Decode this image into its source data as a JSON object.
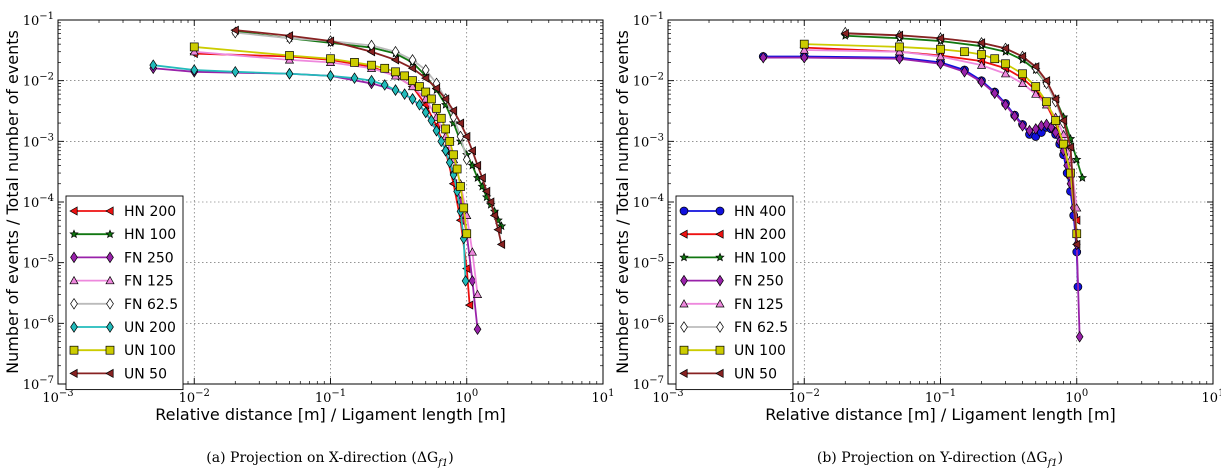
{
  "chart_data": [
    {
      "type": "line",
      "xscale": "log",
      "yscale": "log",
      "xlim": [
        0.001,
        10
      ],
      "ylim": [
        1e-07,
        0.1
      ],
      "xlabel": "Relative distance [m] / Ligament length [m]",
      "ylabel": "Number of events / Total number of events",
      "caption": "(a) Projection on X-direction (ΔG",
      "caption_sub": "f1",
      "caption_end": ")",
      "grid": true,
      "legend_position": "lower-left",
      "x_ticks": [
        {
          "base": "10",
          "exp": "−3"
        },
        {
          "base": "10",
          "exp": "−2"
        },
        {
          "base": "10",
          "exp": "−1"
        },
        {
          "base": "10",
          "exp": "0"
        },
        {
          "base": "10",
          "exp": "1"
        }
      ],
      "y_ticks": [
        {
          "base": "10",
          "exp": "−7"
        },
        {
          "base": "10",
          "exp": "−6"
        },
        {
          "base": "10",
          "exp": "−5"
        },
        {
          "base": "10",
          "exp": "−4"
        },
        {
          "base": "10",
          "exp": "−3"
        },
        {
          "base": "10",
          "exp": "−2"
        },
        {
          "base": "10",
          "exp": "−1"
        }
      ],
      "series": [
        {
          "name": "HN 200",
          "color": "#ee1111",
          "marker": "tri-left",
          "x": [
            0.01,
            0.05,
            0.1,
            0.2,
            0.3,
            0.4,
            0.5,
            0.6,
            0.7,
            0.8,
            0.9,
            1.0,
            1.05
          ],
          "y": [
            0.028,
            0.025,
            0.022,
            0.017,
            0.012,
            0.008,
            0.004,
            0.0018,
            0.0007,
            0.0002,
            5e-05,
            8e-06,
            2e-06
          ]
        },
        {
          "name": "HN 100",
          "color": "#117711",
          "marker": "star",
          "x": [
            0.02,
            0.05,
            0.1,
            0.2,
            0.3,
            0.4,
            0.5,
            0.6,
            0.7,
            0.8,
            0.9,
            1.0,
            1.1,
            1.2,
            1.3,
            1.4,
            1.5,
            1.6,
            1.7,
            1.8
          ],
          "y": [
            0.065,
            0.05,
            0.042,
            0.035,
            0.028,
            0.02,
            0.012,
            0.007,
            0.004,
            0.002,
            0.001,
            0.0006,
            0.0004,
            0.00025,
            0.00018,
            0.00012,
            9e-05,
            7e-05,
            5e-05,
            4e-05
          ]
        },
        {
          "name": "FN 250",
          "color": "#9922aa",
          "marker": "diamond",
          "x": [
            0.005,
            0.01,
            0.05,
            0.1,
            0.2,
            0.3,
            0.4,
            0.5,
            0.6,
            0.7,
            0.8,
            0.9,
            1.0,
            1.1,
            1.2
          ],
          "y": [
            0.016,
            0.014,
            0.013,
            0.012,
            0.009,
            0.007,
            0.005,
            0.003,
            0.0015,
            0.0007,
            0.0003,
            0.0001,
            3e-05,
            5e-06,
            8e-07
          ]
        },
        {
          "name": "FN 125",
          "color": "#ee88dd",
          "marker": "triangle",
          "x": [
            0.01,
            0.05,
            0.1,
            0.2,
            0.3,
            0.4,
            0.5,
            0.6,
            0.7,
            0.8,
            0.9,
            1.0,
            1.1,
            1.2
          ],
          "y": [
            0.03,
            0.022,
            0.02,
            0.016,
            0.012,
            0.008,
            0.005,
            0.0025,
            0.0012,
            0.0005,
            0.0002,
            6e-05,
            1.5e-05,
            3e-06
          ]
        },
        {
          "name": "FN 62.5",
          "color": "#bbbbbb",
          "marker": "diamond-open",
          "x": [
            0.02,
            0.05,
            0.1,
            0.2,
            0.3,
            0.4,
            0.5,
            0.6,
            0.7,
            0.8,
            0.9,
            1.0
          ],
          "y": [
            0.062,
            0.05,
            0.045,
            0.038,
            0.03,
            0.022,
            0.015,
            0.009,
            0.005,
            0.0025,
            0.0012,
            0.0005
          ]
        },
        {
          "name": "UN 200",
          "color": "#22bbbb",
          "marker": "diamond",
          "x": [
            0.005,
            0.01,
            0.02,
            0.05,
            0.1,
            0.15,
            0.2,
            0.25,
            0.3,
            0.35,
            0.4,
            0.45,
            0.5,
            0.55,
            0.6,
            0.65,
            0.7,
            0.75,
            0.8,
            0.85,
            0.9,
            0.95,
            0.98
          ],
          "y": [
            0.018,
            0.015,
            0.014,
            0.013,
            0.012,
            0.011,
            0.01,
            0.0085,
            0.007,
            0.006,
            0.005,
            0.004,
            0.003,
            0.0022,
            0.0015,
            0.001,
            0.0007,
            0.00045,
            0.00028,
            0.00015,
            7e-05,
            2.5e-05,
            5e-06
          ]
        },
        {
          "name": "UN 100",
          "color": "#cccc00",
          "marker": "square",
          "x": [
            0.01,
            0.05,
            0.1,
            0.15,
            0.2,
            0.25,
            0.3,
            0.35,
            0.4,
            0.45,
            0.5,
            0.55,
            0.6,
            0.65,
            0.7,
            0.75,
            0.8,
            0.85,
            0.9,
            0.95,
            1.0
          ],
          "y": [
            0.036,
            0.026,
            0.023,
            0.02,
            0.018,
            0.016,
            0.014,
            0.012,
            0.01,
            0.008,
            0.0065,
            0.005,
            0.0035,
            0.0024,
            0.0016,
            0.001,
            0.0006,
            0.00035,
            0.00018,
            8e-05,
            3e-05
          ]
        },
        {
          "name": "UN 50",
          "color": "#882222",
          "marker": "tri-left",
          "x": [
            0.02,
            0.05,
            0.1,
            0.2,
            0.3,
            0.4,
            0.5,
            0.6,
            0.7,
            0.8,
            0.9,
            1.0,
            1.1,
            1.2,
            1.3,
            1.4,
            1.5,
            1.6,
            1.7,
            1.8
          ],
          "y": [
            0.068,
            0.055,
            0.045,
            0.03,
            0.022,
            0.016,
            0.011,
            0.0075,
            0.005,
            0.0032,
            0.002,
            0.0012,
            0.0007,
            0.0004,
            0.00025,
            0.00015,
            0.0001,
            6e-05,
            3.5e-05,
            2e-05
          ]
        }
      ]
    },
    {
      "type": "line",
      "xscale": "log",
      "yscale": "log",
      "xlim": [
        0.001,
        10
      ],
      "ylim": [
        1e-07,
        0.1
      ],
      "xlabel": "Relative distance [m] / Ligament length [m]",
      "ylabel": "Number of events / Total number of events",
      "caption": "(b) Projection on Y-direction (ΔG",
      "caption_sub": "f1",
      "caption_end": ")",
      "grid": true,
      "legend_position": "lower-left",
      "x_ticks": [
        {
          "base": "10",
          "exp": "−3"
        },
        {
          "base": "10",
          "exp": "−2"
        },
        {
          "base": "10",
          "exp": "−1"
        },
        {
          "base": "10",
          "exp": "0"
        },
        {
          "base": "10",
          "exp": "1"
        }
      ],
      "y_ticks": [
        {
          "base": "10",
          "exp": "−7"
        },
        {
          "base": "10",
          "exp": "−6"
        },
        {
          "base": "10",
          "exp": "−5"
        },
        {
          "base": "10",
          "exp": "−4"
        },
        {
          "base": "10",
          "exp": "−3"
        },
        {
          "base": "10",
          "exp": "−2"
        },
        {
          "base": "10",
          "exp": "−1"
        }
      ],
      "series": [
        {
          "name": "HN 400",
          "color": "#1111dd",
          "marker": "circle",
          "x": [
            0.005,
            0.01,
            0.05,
            0.1,
            0.15,
            0.2,
            0.25,
            0.3,
            0.35,
            0.4,
            0.45,
            0.5,
            0.55,
            0.6,
            0.65,
            0.7,
            0.75,
            0.8,
            0.85,
            0.9,
            0.95,
            1.0,
            1.02
          ],
          "y": [
            0.025,
            0.025,
            0.024,
            0.02,
            0.015,
            0.01,
            0.0065,
            0.0042,
            0.0027,
            0.0019,
            0.0013,
            0.0012,
            0.0014,
            0.0017,
            0.0016,
            0.0013,
            0.0009,
            0.0006,
            0.0003,
            0.00015,
            6e-05,
            1.5e-05,
            4e-06
          ]
        },
        {
          "name": "HN 200",
          "color": "#ee1111",
          "marker": "tri-left",
          "x": [
            0.01,
            0.05,
            0.1,
            0.2,
            0.3,
            0.4,
            0.5,
            0.6,
            0.7,
            0.8,
            0.9,
            1.0
          ],
          "y": [
            0.035,
            0.03,
            0.026,
            0.021,
            0.016,
            0.011,
            0.007,
            0.004,
            0.002,
            0.0008,
            0.00025,
            5e-05
          ]
        },
        {
          "name": "HN 100",
          "color": "#117711",
          "marker": "star",
          "x": [
            0.02,
            0.05,
            0.1,
            0.2,
            0.3,
            0.4,
            0.5,
            0.6,
            0.7,
            0.8,
            0.9,
            1.0,
            1.1
          ],
          "y": [
            0.055,
            0.05,
            0.045,
            0.037,
            0.03,
            0.022,
            0.015,
            0.009,
            0.005,
            0.0025,
            0.0011,
            0.0005,
            0.00025
          ]
        },
        {
          "name": "FN 250",
          "color": "#9922aa",
          "marker": "diamond",
          "x": [
            0.005,
            0.01,
            0.05,
            0.1,
            0.15,
            0.2,
            0.25,
            0.3,
            0.35,
            0.4,
            0.45,
            0.5,
            0.55,
            0.6,
            0.65,
            0.7,
            0.75,
            0.8,
            0.85,
            0.9,
            0.95,
            1.0,
            1.05
          ],
          "y": [
            0.024,
            0.024,
            0.023,
            0.019,
            0.014,
            0.0095,
            0.0062,
            0.004,
            0.0026,
            0.0018,
            0.0015,
            0.0016,
            0.0018,
            0.0019,
            0.0017,
            0.0014,
            0.001,
            0.0007,
            0.0004,
            0.0002,
            8e-05,
            2e-05,
            6e-07
          ]
        },
        {
          "name": "FN 125",
          "color": "#ee88dd",
          "marker": "triangle",
          "x": [
            0.01,
            0.05,
            0.1,
            0.2,
            0.3,
            0.4,
            0.5,
            0.6,
            0.7,
            0.8,
            0.9,
            1.0
          ],
          "y": [
            0.032,
            0.03,
            0.025,
            0.018,
            0.013,
            0.009,
            0.006,
            0.004,
            0.0025,
            0.0013,
            0.0005,
            8e-05
          ]
        },
        {
          "name": "FN 62.5",
          "color": "#bbbbbb",
          "marker": "diamond-open",
          "x": [
            0.02,
            0.05,
            0.1,
            0.2,
            0.3,
            0.4,
            0.5,
            0.6,
            0.7,
            0.8,
            0.9,
            1.0
          ],
          "y": [
            0.062,
            0.055,
            0.05,
            0.042,
            0.034,
            0.025,
            0.016,
            0.009,
            0.0045,
            0.002,
            0.0008,
            3e-05
          ]
        },
        {
          "name": "UN 100",
          "color": "#cccc00",
          "marker": "square",
          "x": [
            0.01,
            0.05,
            0.1,
            0.15,
            0.2,
            0.25,
            0.3,
            0.4,
            0.5,
            0.6,
            0.7,
            0.8,
            0.9,
            1.0
          ],
          "y": [
            0.04,
            0.036,
            0.033,
            0.03,
            0.027,
            0.023,
            0.019,
            0.013,
            0.008,
            0.0045,
            0.0022,
            0.0009,
            0.0003,
            3e-05
          ]
        },
        {
          "name": "UN 50",
          "color": "#882222",
          "marker": "tri-left",
          "x": [
            0.02,
            0.05,
            0.1,
            0.2,
            0.3,
            0.4,
            0.5,
            0.6,
            0.7,
            0.8,
            0.9,
            1.0
          ],
          "y": [
            0.06,
            0.056,
            0.05,
            0.042,
            0.034,
            0.025,
            0.017,
            0.01,
            0.005,
            0.0022,
            0.0008,
            2e-05
          ]
        }
      ]
    }
  ]
}
